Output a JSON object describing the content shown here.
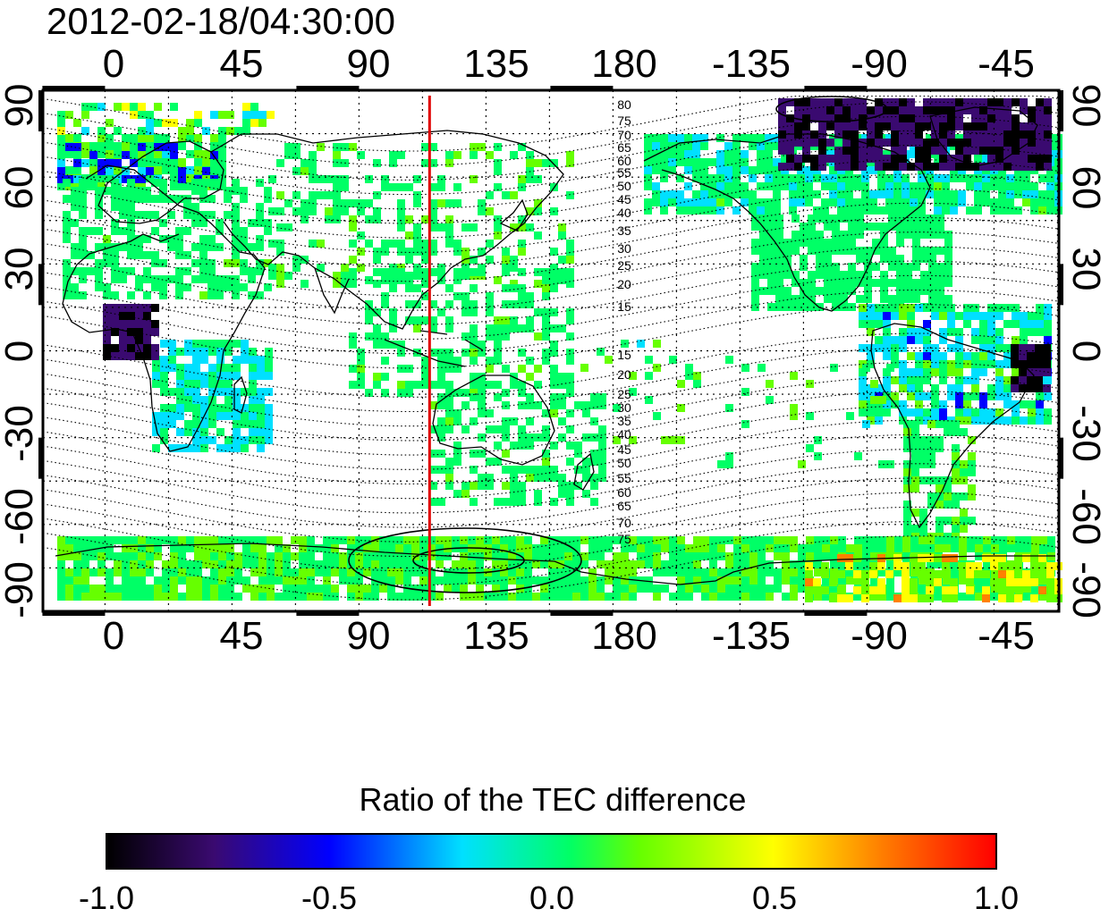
{
  "title": "2012-02-18/04:30:00",
  "lon_ticks": [
    "0",
    "45",
    "90",
    "135",
    "180",
    "-135",
    "-90",
    "-45"
  ],
  "lat_ticks": [
    "90",
    "60",
    "30",
    "0",
    "-30",
    "-60",
    "-90"
  ],
  "contour_labels_north": [
    "80",
    "75",
    "70",
    "65",
    "60",
    "55",
    "50",
    "45",
    "40",
    "35",
    "30",
    "25",
    "20",
    "15"
  ],
  "contour_labels_south": [
    "15",
    "20",
    "25",
    "30",
    "35",
    "40",
    "45",
    "50",
    "55",
    "60",
    "65",
    "70",
    "75"
  ],
  "red_meridian_lon": 115,
  "colorbar": {
    "title": "Ratio of the TEC difference",
    "tick_labels": [
      "-1.0",
      "-0.5",
      "0.0",
      "0.5",
      "1.0"
    ],
    "range": [
      -1.0,
      1.0
    ],
    "colors": [
      "#000000",
      "#3a0a70",
      "#0000ff",
      "#00e0ff",
      "#00ff66",
      "#66ff00",
      "#ffff00",
      "#ff8000",
      "#ff0000"
    ]
  },
  "colors": {
    "meridian": "#e00000",
    "coast": "#000000"
  }
}
